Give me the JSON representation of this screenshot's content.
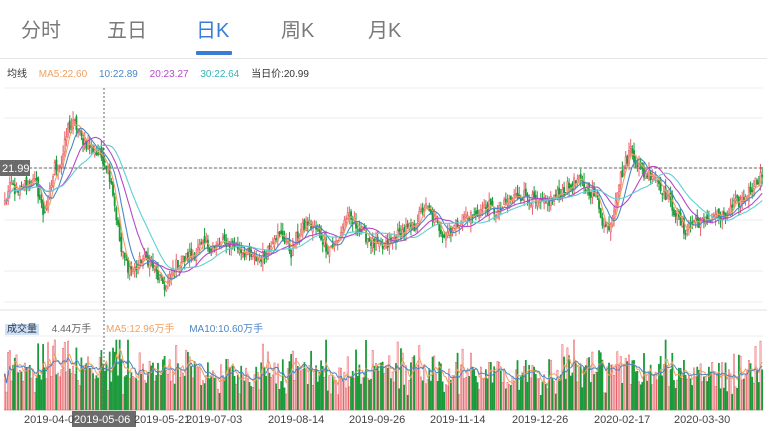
{
  "tabs": [
    {
      "label": "分时",
      "active": false
    },
    {
      "label": "五日",
      "active": false
    },
    {
      "label": "日K",
      "active": true
    },
    {
      "label": "周K",
      "active": false
    },
    {
      "label": "月K",
      "active": false
    }
  ],
  "legend": {
    "label": "均线",
    "ma5": "MA5:22.60",
    "ma10": "10:22.89",
    "ma20": "20:23.27",
    "ma30": "30:22.64",
    "current": "当日价:20.99"
  },
  "volume_legend": {
    "label": "成交量",
    "value": "4.44万手",
    "ma5": "MA5:12.96万手",
    "ma10": "MA10:10.60万手"
  },
  "crosshair": {
    "price_label": "21.99",
    "date_label": "2019-05-06"
  },
  "colors": {
    "up": "#e8636a",
    "down": "#1a9a3a",
    "ma5": "#f0a060",
    "ma10": "#4b86c8",
    "ma20": "#b648c8",
    "ma30": "#5ed0d0",
    "accent": "#3a7dd4"
  },
  "chart_data": {
    "type": "candlestick",
    "x_axis": {
      "tick_labels": [
        "2019-04-0",
        "2019-05-21",
        "2019-07-03",
        "2019-08-14",
        "2019-09-26",
        "2019-11-14",
        "2019-12-26",
        "2020-02-17",
        "2020-03-30"
      ]
    },
    "price_range": [
      18.6,
      24.6
    ],
    "price_anchors": [
      [
        0,
        21.4
      ],
      [
        4,
        21.9
      ],
      [
        8,
        21.6
      ],
      [
        12,
        21.9
      ],
      [
        15,
        22.0
      ],
      [
        19,
        21.9
      ],
      [
        23,
        21.1
      ],
      [
        26,
        21.4
      ],
      [
        30,
        22.4
      ],
      [
        34,
        22.5
      ],
      [
        38,
        23.5
      ],
      [
        42,
        23.6
      ],
      [
        46,
        23.2
      ],
      [
        50,
        23.0
      ],
      [
        55,
        22.8
      ],
      [
        60,
        22.6
      ],
      [
        64,
        22.0
      ],
      [
        67,
        21.0
      ],
      [
        70,
        20.0
      ],
      [
        74,
        19.6
      ],
      [
        78,
        19.5
      ],
      [
        82,
        19.8
      ],
      [
        87,
        19.8
      ],
      [
        92,
        19.3
      ],
      [
        97,
        19.0
      ],
      [
        102,
        19.6
      ],
      [
        108,
        19.8
      ],
      [
        114,
        20.0
      ],
      [
        120,
        20.2
      ],
      [
        126,
        20.1
      ],
      [
        132,
        20.3
      ],
      [
        138,
        20.2
      ],
      [
        144,
        20.0
      ],
      [
        150,
        19.8
      ],
      [
        156,
        19.9
      ],
      [
        162,
        20.5
      ],
      [
        168,
        20.4
      ],
      [
        172,
        20.0
      ],
      [
        176,
        20.5
      ],
      [
        182,
        20.8
      ],
      [
        188,
        20.6
      ],
      [
        194,
        20.1
      ],
      [
        200,
        20.3
      ],
      [
        205,
        21.0
      ],
      [
        210,
        20.8
      ],
      [
        216,
        20.5
      ],
      [
        222,
        20.2
      ],
      [
        228,
        20.1
      ],
      [
        234,
        20.4
      ],
      [
        240,
        20.6
      ],
      [
        246,
        20.7
      ],
      [
        252,
        21.3
      ],
      [
        258,
        20.9
      ],
      [
        264,
        20.5
      ],
      [
        270,
        20.7
      ],
      [
        276,
        21.0
      ],
      [
        282,
        21.0
      ],
      [
        290,
        21.3
      ],
      [
        296,
        21.1
      ],
      [
        302,
        21.4
      ],
      [
        308,
        21.6
      ],
      [
        314,
        21.6
      ],
      [
        320,
        21.3
      ],
      [
        326,
        21.4
      ],
      [
        332,
        21.6
      ],
      [
        338,
        21.8
      ],
      [
        344,
        22.0
      ],
      [
        350,
        21.8
      ],
      [
        356,
        21.5
      ],
      [
        360,
        20.7
      ],
      [
        364,
        20.8
      ],
      [
        368,
        21.8
      ],
      [
        372,
        22.4
      ],
      [
        376,
        22.9
      ],
      [
        380,
        22.5
      ],
      [
        384,
        22.2
      ],
      [
        390,
        22.2
      ],
      [
        396,
        21.7
      ],
      [
        402,
        21.2
      ],
      [
        408,
        20.6
      ],
      [
        414,
        20.9
      ],
      [
        420,
        20.8
      ],
      [
        426,
        21.1
      ],
      [
        432,
        20.9
      ],
      [
        438,
        21.3
      ],
      [
        444,
        21.5
      ],
      [
        450,
        21.9
      ],
      [
        455,
        22.2
      ]
    ],
    "volume_legend_unit": "万手"
  }
}
